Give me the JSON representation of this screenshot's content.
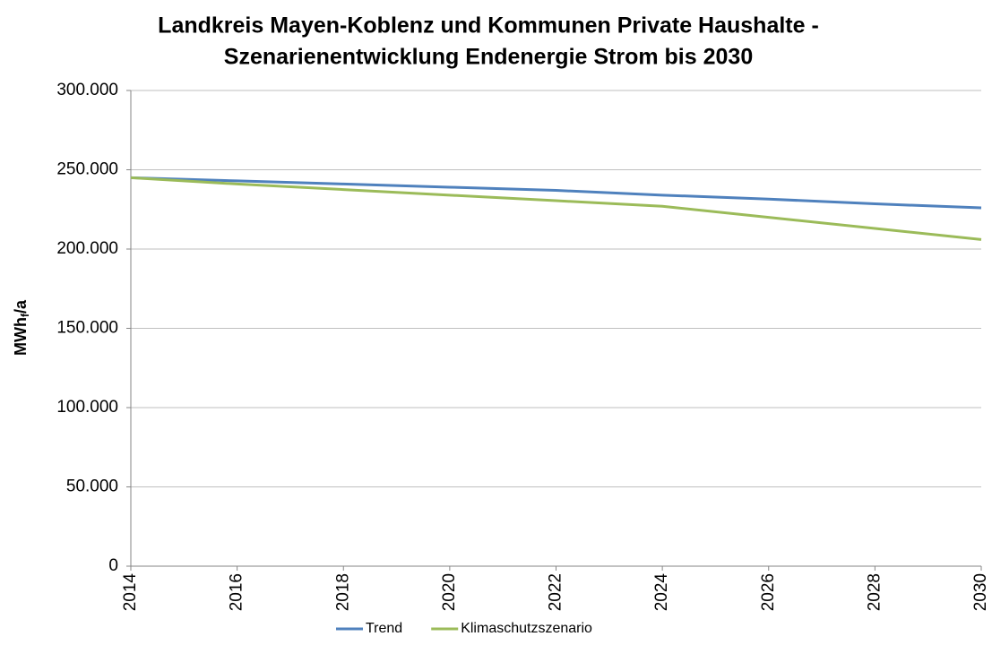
{
  "chart_data": {
    "type": "line",
    "title": [
      "Landkreis Mayen-Koblenz und Kommunen Private Haushalte -",
      "Szenarienentwicklung Endenergie Strom bis 2030"
    ],
    "y_label": [
      "MWh",
      "f",
      "/a"
    ],
    "x": [
      2014,
      2016,
      2018,
      2020,
      2022,
      2024,
      2026,
      2028,
      2030
    ],
    "series": [
      {
        "name": "Trend",
        "color": "#4f81bd",
        "values": [
          245000,
          243000,
          241000,
          239000,
          237000,
          234000,
          231500,
          228500,
          226000
        ]
      },
      {
        "name": "Klimaschutzszenario",
        "color": "#9bbb59",
        "values": [
          245000,
          241000,
          237500,
          234000,
          230500,
          227000,
          220000,
          213000,
          206000
        ]
      }
    ],
    "xlim": [
      2014,
      2030
    ],
    "xticks": [
      2014,
      2016,
      2018,
      2020,
      2022,
      2024,
      2026,
      2028,
      2030
    ],
    "ylim": [
      0,
      300000
    ],
    "yticks": [
      0,
      {
        "value": 50000,
        "label": "50.000"
      },
      {
        "value": 100000,
        "label": "100.000"
      },
      {
        "value": 150000,
        "label": "150.000"
      },
      {
        "value": 200000,
        "label": "200.000"
      },
      {
        "value": 250000,
        "label": "250.000"
      },
      {
        "value": 300000,
        "label": "300.000"
      }
    ],
    "grid": true,
    "legend": "bottom"
  }
}
